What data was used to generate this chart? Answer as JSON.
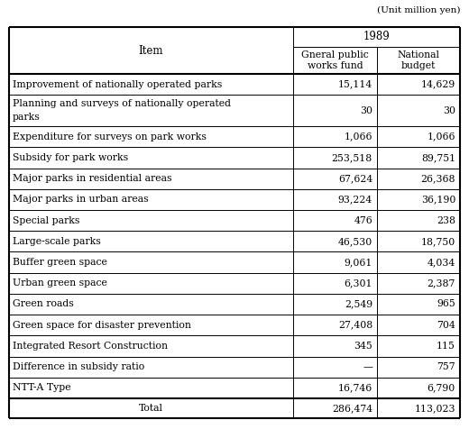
{
  "unit_label": "(Unit million yen)",
  "year_header": "1989",
  "col1_header": "Gneral public\nworks fund",
  "col2_header": "National\nbudget",
  "item_header": "Item",
  "rows": [
    [
      "Improvement of nationally operated parks",
      "15,114",
      "14,629"
    ],
    [
      "Planning and surveys of nationally operated\nparks",
      "30",
      "30"
    ],
    [
      "Expenditure for surveys on park works",
      "1,066",
      "1,066"
    ],
    [
      "Subsidy for park works",
      "253,518",
      "89,751"
    ],
    [
      "Major parks in residential areas",
      "67,624",
      "26,368"
    ],
    [
      "Major parks in urban areas",
      "93,224",
      "36,190"
    ],
    [
      "Special parks",
      "476",
      "238"
    ],
    [
      "Large-scale parks",
      "46,530",
      "18,750"
    ],
    [
      "Buffer green space",
      "9,061",
      "4,034"
    ],
    [
      "Urban green space",
      "6,301",
      "2,387"
    ],
    [
      "Green roads",
      "2,549",
      "965"
    ],
    [
      "Green space for disaster prevention",
      "27,408",
      "704"
    ],
    [
      "Integrated Resort Construction",
      "345",
      "115"
    ],
    [
      "Difference in subsidy ratio",
      "—",
      "757"
    ],
    [
      "NTT-A Type",
      "16,746",
      "6,790"
    ]
  ],
  "total_row": [
    "Total",
    "286,474",
    "113,023"
  ],
  "bg_color": "#ffffff",
  "line_color": "#000000",
  "text_color": "#000000",
  "font_size": 7.8,
  "header_font_size": 8.5,
  "fig_width": 5.2,
  "fig_height": 4.76,
  "dpi": 100
}
